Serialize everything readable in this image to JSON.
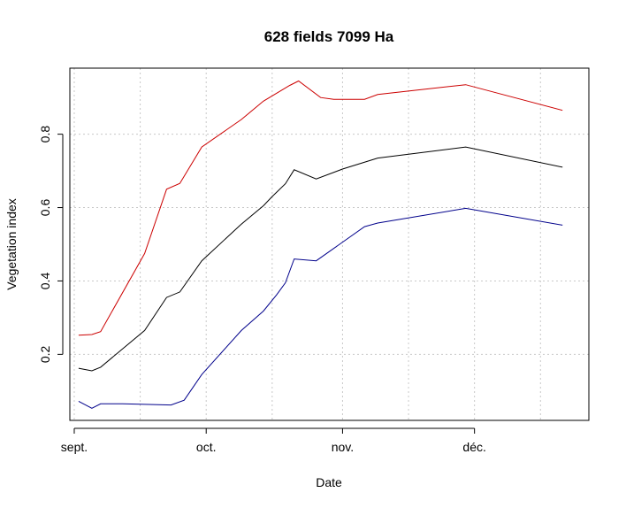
{
  "chart_data": {
    "type": "line",
    "title": "628  fields 7099 Ha",
    "xlabel": "Date",
    "ylabel": "Vegetation index",
    "x_ticks": [
      "sept.",
      "oct.",
      "nov.",
      "déc."
    ],
    "y_ticks": [
      0.2,
      0.4,
      0.6,
      0.8
    ],
    "ylim": [
      0.02,
      0.98
    ],
    "grid": true,
    "legend": "none",
    "series": [
      {
        "color": "#cc0000",
        "points": [
          [
            1,
            0.252
          ],
          [
            4,
            0.254
          ],
          [
            6,
            0.262
          ],
          [
            16,
            0.475
          ],
          [
            21,
            0.65
          ],
          [
            24,
            0.666
          ],
          [
            29,
            0.765
          ],
          [
            38,
            0.84
          ],
          [
            43,
            0.89
          ],
          [
            49,
            0.933
          ],
          [
            51,
            0.945
          ],
          [
            56,
            0.9
          ],
          [
            59,
            0.895
          ],
          [
            66,
            0.895
          ],
          [
            69,
            0.908
          ],
          [
            89,
            0.935
          ],
          [
            111,
            0.865
          ]
        ]
      },
      {
        "color": "#000000",
        "points": [
          [
            1,
            0.162
          ],
          [
            4,
            0.155
          ],
          [
            6,
            0.165
          ],
          [
            16,
            0.265
          ],
          [
            21,
            0.355
          ],
          [
            24,
            0.37
          ],
          [
            29,
            0.455
          ],
          [
            38,
            0.555
          ],
          [
            43,
            0.605
          ],
          [
            45,
            0.63
          ],
          [
            48,
            0.665
          ],
          [
            50,
            0.703
          ],
          [
            55,
            0.678
          ],
          [
            61,
            0.705
          ],
          [
            69,
            0.735
          ],
          [
            89,
            0.765
          ],
          [
            111,
            0.71
          ]
        ]
      },
      {
        "color": "#00008b",
        "points": [
          [
            1,
            0.072
          ],
          [
            4,
            0.053
          ],
          [
            6,
            0.065
          ],
          [
            11,
            0.065
          ],
          [
            22,
            0.062
          ],
          [
            25,
            0.075
          ],
          [
            29,
            0.145
          ],
          [
            38,
            0.265
          ],
          [
            43,
            0.318
          ],
          [
            46,
            0.362
          ],
          [
            48,
            0.395
          ],
          [
            50,
            0.46
          ],
          [
            55,
            0.455
          ],
          [
            66,
            0.548
          ],
          [
            69,
            0.558
          ],
          [
            89,
            0.598
          ],
          [
            111,
            0.552
          ]
        ]
      }
    ]
  }
}
